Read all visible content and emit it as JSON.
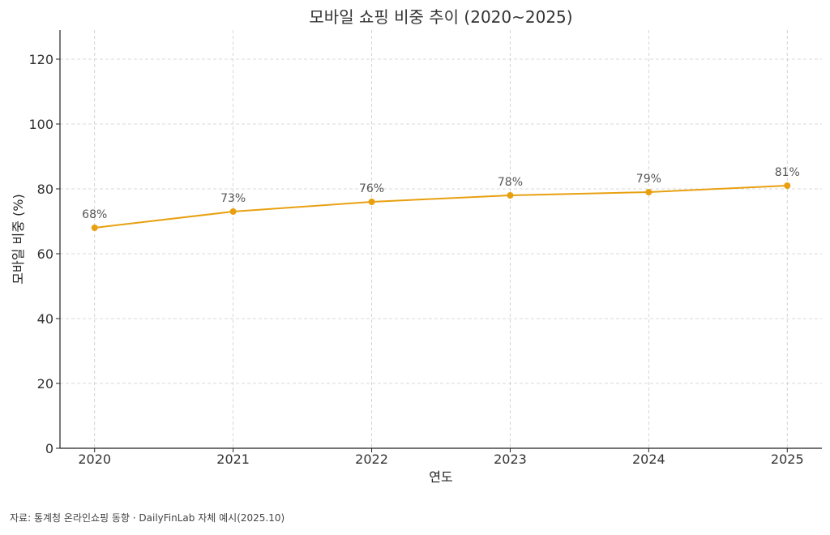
{
  "chart_data": {
    "type": "line",
    "title": "모바일 쇼핑 비중 추이 (2020~2025)",
    "xlabel": "연도",
    "ylabel": "모바일 비중 (%)",
    "categories": [
      "2020",
      "2021",
      "2022",
      "2023",
      "2024",
      "2025"
    ],
    "series": [
      {
        "values": [
          68,
          73,
          76,
          78,
          79,
          81
        ],
        "labels": [
          "68%",
          "73%",
          "76%",
          "78%",
          "79%",
          "81%"
        ]
      }
    ],
    "yticks": [
      0,
      20,
      40,
      60,
      80,
      100,
      120
    ],
    "ylim": [
      0,
      129
    ],
    "xlim": [
      2019.75,
      2025.25
    ],
    "grid": true,
    "color": "#E8A010"
  },
  "source_note": "자료: 통계청 온라인쇼핑 동향 · DailyFinLab 자체 예시(2025.10)"
}
